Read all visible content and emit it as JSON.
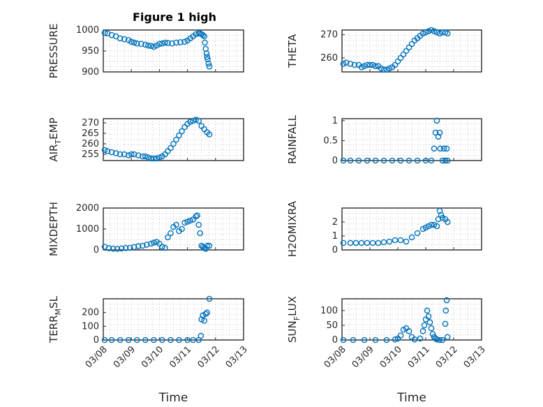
{
  "figure": {
    "title": "Figure 1 high",
    "marker_color": "#0072bd",
    "grid": true,
    "grid_style": "dotted, major and minor"
  },
  "chart_data": [
    {
      "id": "pressure",
      "type": "scatter",
      "title": "Figure 1 high",
      "ylabel": "PRESSURE",
      "xlabel": "",
      "xlim": [
        0,
        5
      ],
      "ylim": [
        900,
        1000
      ],
      "yticks": [
        900,
        950,
        1000
      ],
      "xticks": [
        0,
        1,
        2,
        3,
        4,
        5
      ],
      "xtick_labels": [],
      "x": [
        0.05,
        0.15,
        0.3,
        0.45,
        0.6,
        0.75,
        0.9,
        1.0,
        1.1,
        1.2,
        1.35,
        1.5,
        1.6,
        1.7,
        1.8,
        1.9,
        2.0,
        2.1,
        2.2,
        2.3,
        2.45,
        2.6,
        2.75,
        2.9,
        3.0,
        3.1,
        3.2,
        3.3,
        3.4,
        3.45,
        3.5,
        3.55,
        3.6,
        3.62,
        3.65,
        3.68,
        3.7,
        3.72,
        3.75,
        3.78
      ],
      "y": [
        993,
        992,
        988,
        985,
        980,
        978,
        976,
        972,
        970,
        968,
        967,
        965,
        963,
        962,
        960,
        963,
        967,
        968,
        970,
        969,
        968,
        970,
        971,
        972,
        975,
        980,
        985,
        990,
        992,
        992,
        990,
        988,
        985,
        970,
        955,
        944,
        936,
        930,
        920,
        913
      ]
    },
    {
      "id": "theta",
      "type": "scatter",
      "title": "",
      "ylabel": "THETA",
      "xlabel": "",
      "xlim": [
        0,
        5
      ],
      "ylim": [
        254,
        272
      ],
      "yticks": [
        260,
        270
      ],
      "xticks": [
        0,
        1,
        2,
        3,
        4,
        5
      ],
      "xtick_labels": [],
      "x": [
        0.05,
        0.15,
        0.3,
        0.45,
        0.6,
        0.7,
        0.8,
        0.9,
        1.0,
        1.1,
        1.2,
        1.3,
        1.4,
        1.5,
        1.6,
        1.7,
        1.8,
        1.9,
        2.0,
        2.1,
        2.2,
        2.3,
        2.4,
        2.5,
        2.6,
        2.7,
        2.8,
        2.9,
        3.0,
        3.1,
        3.2,
        3.3,
        3.4,
        3.5,
        3.6,
        3.7,
        3.78
      ],
      "y": [
        257.5,
        258,
        257.5,
        257,
        257,
        256,
        256.5,
        257,
        257,
        257,
        256.5,
        256.5,
        255.5,
        255,
        255,
        255.5,
        256,
        257,
        258.5,
        260,
        261.5,
        263,
        264.5,
        266,
        267.5,
        268.5,
        269.5,
        270.5,
        271,
        271.5,
        272,
        271.5,
        271,
        270.5,
        271,
        271,
        270.5
      ]
    },
    {
      "id": "air_temp",
      "type": "scatter",
      "title": "",
      "ylabel": "AIR",
      "ylabel_sub": "T",
      "ylabel_after": "EMP",
      "xlabel": "",
      "xlim": [
        0,
        5
      ],
      "ylim": [
        252,
        272
      ],
      "yticks": [
        255,
        260,
        265,
        270
      ],
      "xticks": [
        0,
        1,
        2,
        3,
        4,
        5
      ],
      "xtick_labels": [],
      "x": [
        0.05,
        0.15,
        0.3,
        0.45,
        0.6,
        0.75,
        0.9,
        1.0,
        1.1,
        1.25,
        1.4,
        1.5,
        1.6,
        1.7,
        1.8,
        1.9,
        2.0,
        2.1,
        2.2,
        2.3,
        2.4,
        2.5,
        2.6,
        2.7,
        2.8,
        2.9,
        3.0,
        3.1,
        3.2,
        3.3,
        3.4,
        3.5,
        3.6,
        3.7,
        3.78
      ],
      "y": [
        257,
        256.5,
        256,
        255.5,
        255,
        255,
        254.5,
        255,
        255,
        254.5,
        254,
        254,
        253.5,
        253,
        253,
        253,
        253.5,
        254,
        255,
        256.5,
        258,
        260,
        262,
        264,
        266,
        268,
        269.5,
        270.5,
        271,
        271.5,
        271,
        268.5,
        267,
        265.5,
        264.5
      ]
    },
    {
      "id": "rainfall",
      "type": "scatter",
      "title": "",
      "ylabel": "RAINFALL",
      "xlabel": "",
      "xlim": [
        0,
        5
      ],
      "ylim": [
        0,
        1.05
      ],
      "yticks": [
        0,
        0.5,
        1
      ],
      "xticks": [
        0,
        1,
        2,
        3,
        4,
        5
      ],
      "xtick_labels": [],
      "x": [
        0.05,
        0.3,
        0.6,
        0.9,
        1.2,
        1.5,
        1.8,
        2.1,
        2.4,
        2.7,
        3.0,
        3.2,
        3.3,
        3.35,
        3.4,
        3.45,
        3.5,
        3.52,
        3.6,
        3.65,
        3.7,
        3.75,
        3.78
      ],
      "y": [
        0,
        0,
        0,
        0,
        0,
        0,
        0,
        0,
        0,
        0,
        0,
        0,
        0.3,
        0.7,
        1.0,
        0.6,
        0.7,
        0.3,
        0,
        0.3,
        0,
        0.3,
        0
      ]
    },
    {
      "id": "mixdepth",
      "type": "scatter",
      "title": "",
      "ylabel": "MIXDEPTH",
      "xlabel": "",
      "xlim": [
        0,
        5
      ],
      "ylim": [
        0,
        2000
      ],
      "yticks": [
        0,
        1000,
        2000
      ],
      "xticks": [
        0,
        1,
        2,
        3,
        4,
        5
      ],
      "xtick_labels": [],
      "x": [
        0.05,
        0.2,
        0.35,
        0.5,
        0.65,
        0.8,
        0.95,
        1.1,
        1.25,
        1.4,
        1.55,
        1.7,
        1.8,
        1.9,
        2.0,
        2.1,
        2.2,
        2.3,
        2.4,
        2.5,
        2.6,
        2.7,
        2.8,
        2.9,
        3.0,
        3.1,
        3.2,
        3.3,
        3.35,
        3.4,
        3.45,
        3.5,
        3.55,
        3.6,
        3.65,
        3.7,
        3.78
      ],
      "y": [
        150,
        80,
        60,
        50,
        70,
        90,
        100,
        140,
        180,
        200,
        250,
        300,
        350,
        380,
        300,
        150,
        100,
        600,
        800,
        1100,
        1200,
        900,
        1000,
        1300,
        1350,
        1400,
        1450,
        1600,
        1650,
        1200,
        800,
        200,
        150,
        100,
        50,
        200,
        200
      ]
    },
    {
      "id": "h2omixra",
      "type": "scatter",
      "title": "",
      "ylabel": "H2OMIXRA",
      "xlabel": "",
      "xlim": [
        0,
        5
      ],
      "ylim": [
        0,
        3
      ],
      "yticks": [
        0,
        1,
        2
      ],
      "xticks": [
        0,
        1,
        2,
        3,
        4,
        5
      ],
      "xtick_labels": [],
      "x": [
        0.05,
        0.3,
        0.5,
        0.7,
        0.9,
        1.1,
        1.3,
        1.5,
        1.7,
        1.9,
        2.1,
        2.3,
        2.5,
        2.7,
        2.9,
        3.0,
        3.1,
        3.2,
        3.3,
        3.4,
        3.45,
        3.5,
        3.55,
        3.6,
        3.7,
        3.78
      ],
      "y": [
        0.5,
        0.5,
        0.5,
        0.5,
        0.5,
        0.5,
        0.5,
        0.55,
        0.6,
        0.7,
        0.7,
        0.6,
        0.9,
        1.2,
        1.5,
        1.6,
        1.7,
        1.8,
        1.8,
        1.7,
        2.2,
        2.8,
        2.5,
        2.3,
        2.2,
        2.0
      ]
    },
    {
      "id": "terr_msl",
      "type": "scatter",
      "title": "",
      "ylabel": "TERR",
      "ylabel_sub": "M",
      "ylabel_after": "SL",
      "xlabel": "Time",
      "xlim": [
        0,
        5
      ],
      "ylim": [
        0,
        300
      ],
      "yticks": [
        0,
        100,
        200
      ],
      "xticks": [
        0,
        1,
        2,
        3,
        4,
        5
      ],
      "xtick_labels": [
        "03/08",
        "03/09",
        "03/10",
        "03/11",
        "03/12",
        "03/13"
      ],
      "x": [
        0.05,
        0.3,
        0.6,
        0.9,
        1.2,
        1.5,
        1.8,
        2.1,
        2.4,
        2.7,
        3.0,
        3.2,
        3.4,
        3.48,
        3.5,
        3.55,
        3.6,
        3.65,
        3.7,
        3.78
      ],
      "y": [
        0,
        0,
        0,
        0,
        0,
        0,
        0,
        0,
        0,
        0,
        0,
        0,
        0,
        30,
        150,
        180,
        140,
        190,
        200,
        300
      ]
    },
    {
      "id": "sun_flux",
      "type": "scatter",
      "title": "",
      "ylabel": "SUN",
      "ylabel_sub": "F",
      "ylabel_after": "LUX",
      "xlabel": "Time",
      "xlim": [
        0,
        5
      ],
      "ylim": [
        0,
        140
      ],
      "yticks": [
        0,
        50,
        100
      ],
      "xticks": [
        0,
        1,
        2,
        3,
        4,
        5
      ],
      "xtick_labels": [
        "03/08",
        "03/09",
        "03/10",
        "03/11",
        "03/12",
        "03/13"
      ],
      "x": [
        0.05,
        0.4,
        0.8,
        1.2,
        1.6,
        1.9,
        2.0,
        2.1,
        2.2,
        2.3,
        2.4,
        2.5,
        2.6,
        2.8,
        2.9,
        2.95,
        3.0,
        3.05,
        3.1,
        3.15,
        3.2,
        3.25,
        3.3,
        3.35,
        3.4,
        3.5,
        3.6,
        3.7,
        3.72,
        3.75,
        3.78
      ],
      "y": [
        0,
        0,
        0,
        0,
        0,
        2,
        5,
        15,
        35,
        40,
        30,
        10,
        2,
        5,
        30,
        50,
        70,
        100,
        80,
        60,
        40,
        20,
        10,
        5,
        2,
        0,
        0,
        55,
        100,
        135,
        10
      ]
    }
  ]
}
